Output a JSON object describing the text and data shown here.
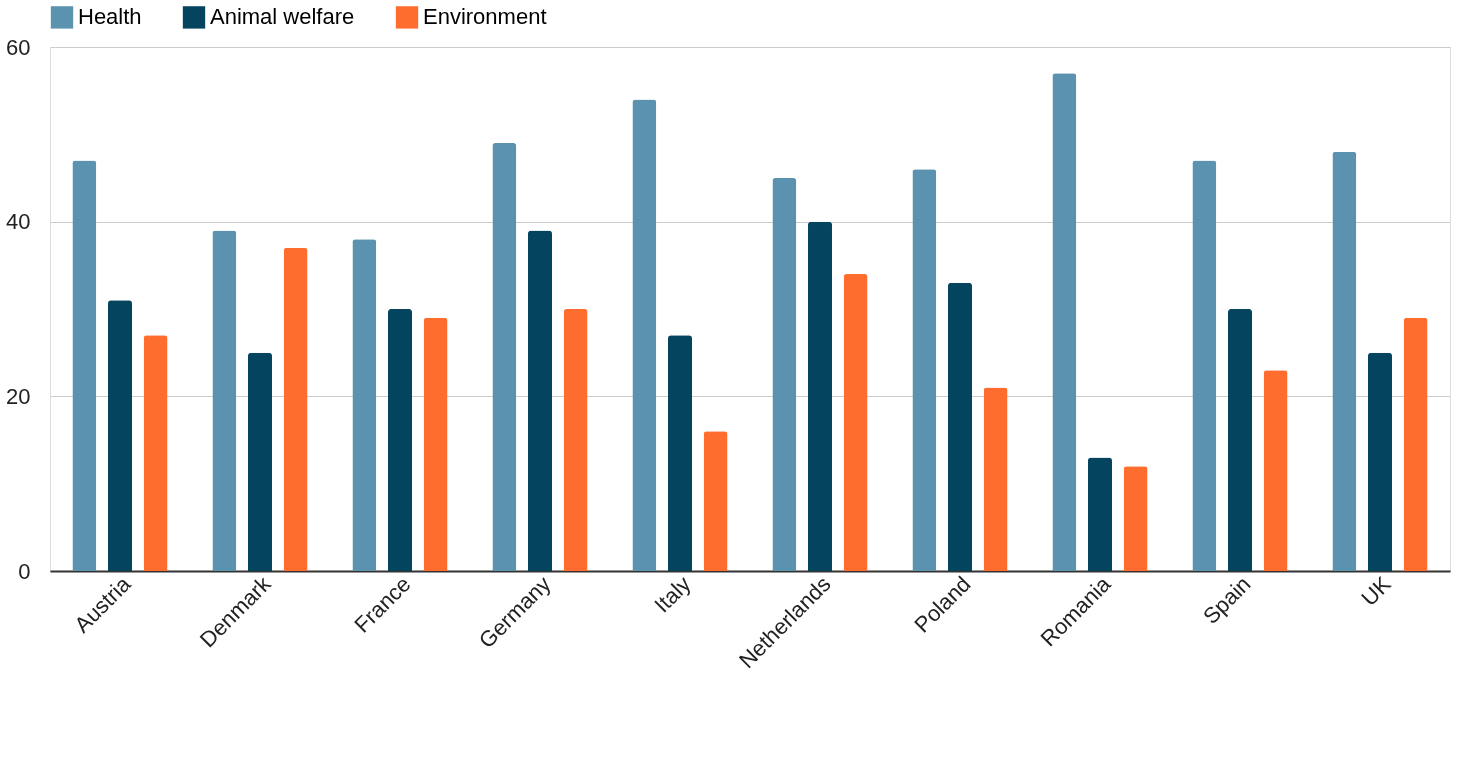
{
  "chart_data": {
    "type": "bar",
    "categories": [
      "Austria",
      "Denmark",
      "France",
      "Germany",
      "Italy",
      "Netherlands",
      "Poland",
      "Romania",
      "Spain",
      "UK"
    ],
    "series": [
      {
        "name": "Health",
        "color": "#5b92b0",
        "values": [
          47,
          39,
          38,
          49,
          54,
          45,
          46,
          57,
          47,
          48
        ]
      },
      {
        "name": "Animal welfare",
        "color": "#04445f",
        "values": [
          31,
          25,
          30,
          39,
          27,
          40,
          33,
          13,
          30,
          25
        ]
      },
      {
        "name": "Environment",
        "color": "#ff6d2e",
        "values": [
          27,
          37,
          29,
          30,
          16,
          34,
          21,
          12,
          23,
          29
        ]
      }
    ],
    "ylim": [
      0,
      60
    ],
    "yticks": [
      0,
      20,
      40,
      60
    ],
    "grid": "y",
    "legend": "top"
  }
}
